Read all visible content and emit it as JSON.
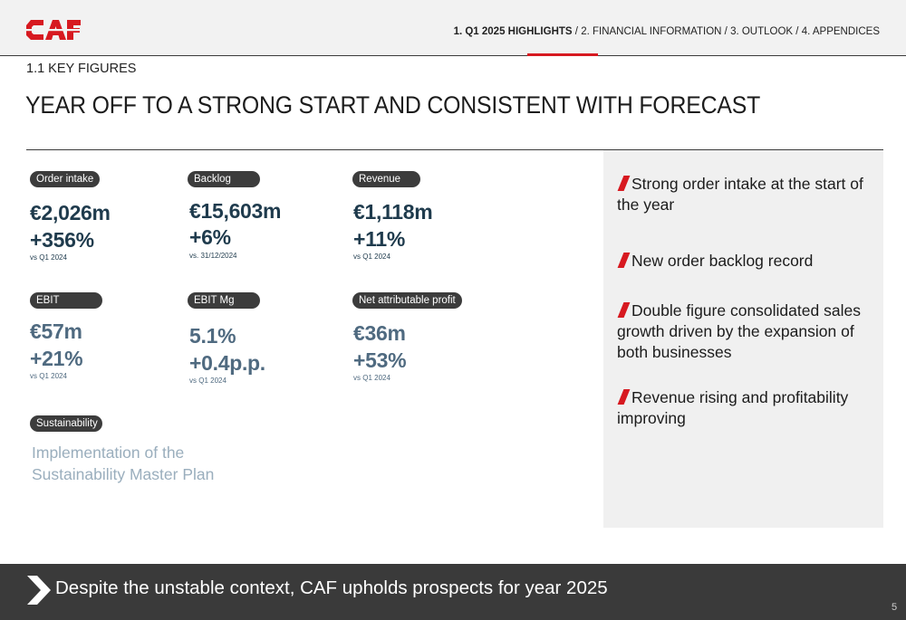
{
  "header": {
    "logo_text": "CAF",
    "nav": [
      {
        "label": "1. Q1 2025 HIGHLIGHTS",
        "active": true
      },
      {
        "label": "2. FINANCIAL INFORMATION",
        "active": false
      },
      {
        "label": "3. OUTLOOK",
        "active": false
      },
      {
        "label": "4. APPENDICES",
        "active": false
      }
    ],
    "nav_separator": "/"
  },
  "section_label": "1.1 KEY FIGURES",
  "page_title": "YEAR OFF TO A STRONG START AND CONSISTENT WITH FORECAST",
  "kpis": [
    {
      "label": "Order intake",
      "value": "€2,026m",
      "change": "+356%",
      "note": "vs Q1 2024"
    },
    {
      "label": "Backlog",
      "value": "€15,603m",
      "change": "+6%",
      "note": "vs. 31/12/2024"
    },
    {
      "label": "Revenue",
      "value": "€1,118m",
      "change": "+11%",
      "note": "vs Q1 2024"
    },
    {
      "label": "EBIT",
      "value": "€57m",
      "change": "+21%",
      "note": "vs Q1 2024"
    },
    {
      "label": "EBIT Mg",
      "value": "5.1%",
      "change": "+0.4p.p.",
      "note": "vs Q1 2024"
    },
    {
      "label": "Net attributable profit",
      "value": "€36m",
      "change": "+53%",
      "note": "vs Q1 2024"
    }
  ],
  "sustainability": {
    "label": "Sustainability",
    "line1": "Implementation of the",
    "line2": "Sustainability Master Plan"
  },
  "highlights": [
    "Strong order intake at the start of the year",
    "New order backlog record",
    "Double figure consolidated sales growth driven by the expansion of both businesses",
    "Revenue rising and profitability improving"
  ],
  "footer": {
    "text": "Despite the unstable context, CAF upholds prospects for year 2025",
    "page_number": "5"
  },
  "colors": {
    "brand_red": "#d71920",
    "kpi_dark": "#1f3b4d",
    "kpi_light": "#4f6a80",
    "badge_bg": "#3c3c3c",
    "footer_bg": "#3a3a3a"
  }
}
